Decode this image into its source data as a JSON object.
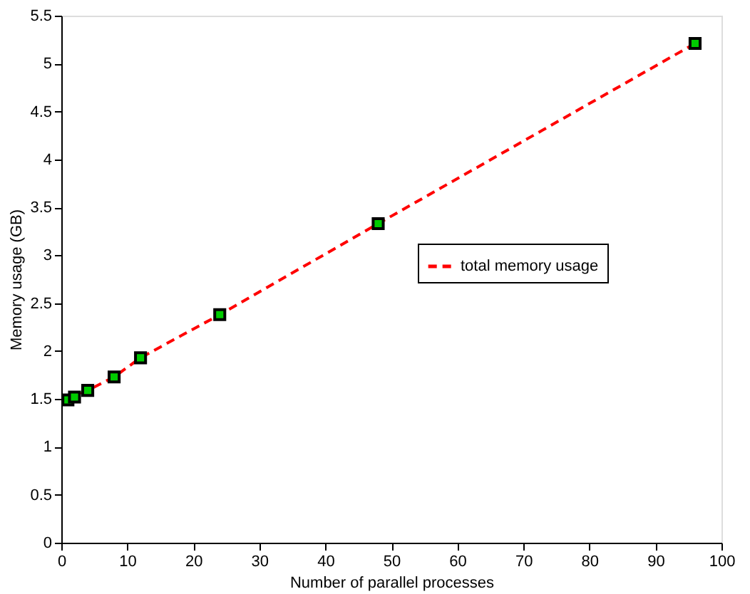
{
  "chart_data": {
    "type": "line",
    "xlabel": "Number of parallel processes",
    "ylabel": "Memory usage (GB)",
    "x": [
      1,
      2,
      4,
      8,
      12,
      24,
      48,
      96
    ],
    "series": [
      {
        "name": "total memory usage",
        "color": "#ff0000",
        "values": [
          1.49,
          1.52,
          1.59,
          1.73,
          1.93,
          2.38,
          3.33,
          5.21
        ]
      }
    ],
    "xlim": [
      0,
      100
    ],
    "xticks": [
      0,
      10,
      20,
      30,
      40,
      50,
      60,
      70,
      80,
      90,
      100
    ],
    "ylim": [
      0,
      5.5
    ],
    "yticks": [
      0,
      0.5,
      1,
      1.5,
      2,
      2.5,
      3,
      3.5,
      4,
      4.5,
      5,
      5.5
    ],
    "marker": "square",
    "line_style": "dashed",
    "legend": "right",
    "grid": false
  }
}
